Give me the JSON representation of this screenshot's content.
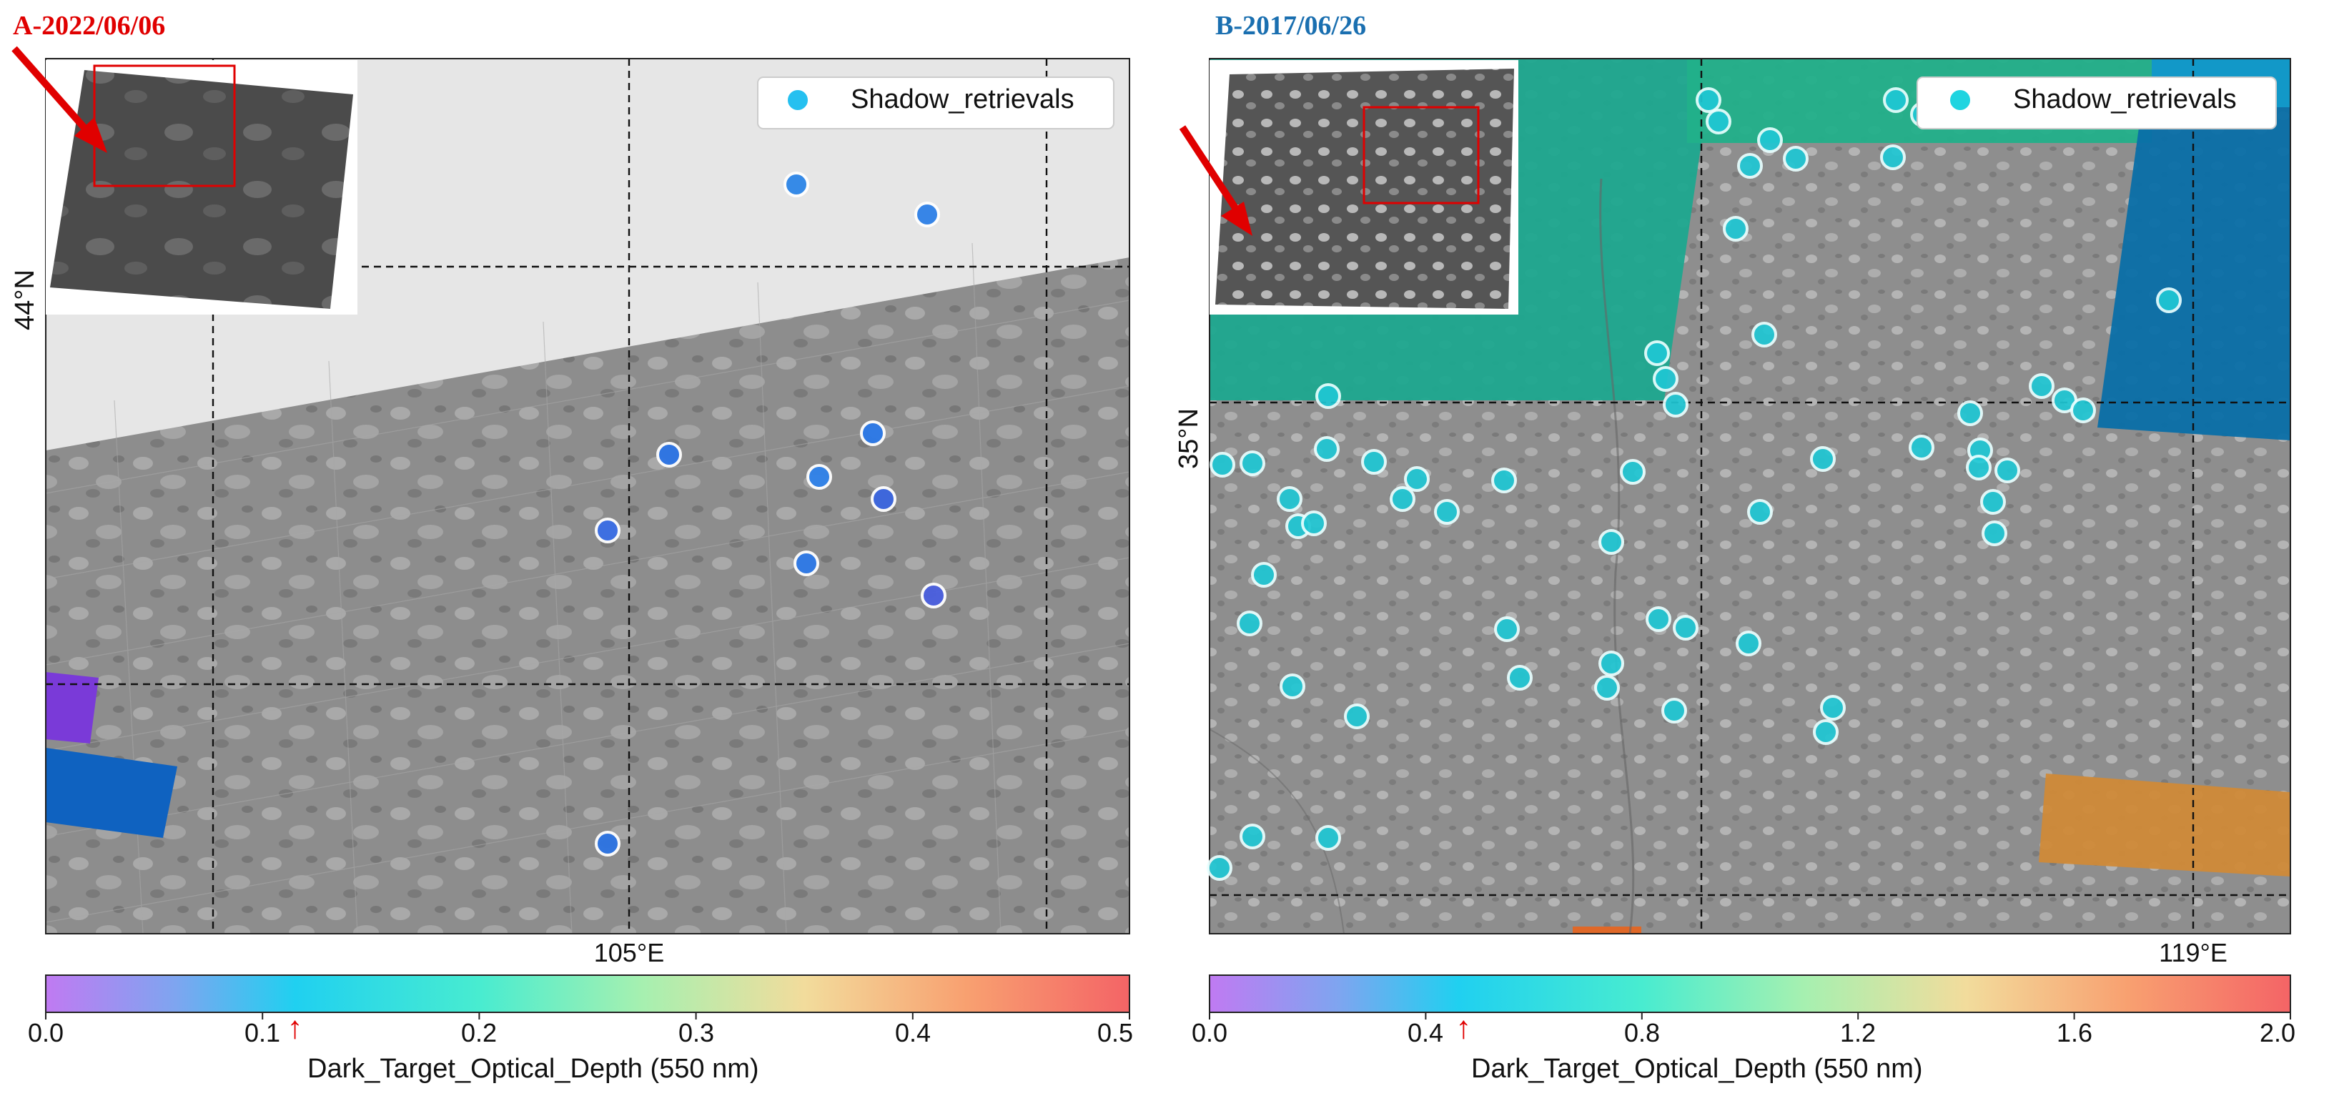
{
  "panels": [
    {
      "title": "A-2022/06/06",
      "title_color": "#e00000",
      "lon_label": "105°E",
      "lat_label": "44°N",
      "legend_label": "Shadow_retrievals",
      "colorbar_label": "Dark_Target_Optical_Depth (550 nm)",
      "colorbar_ticks": [
        "0.0",
        "0.1",
        "0.2",
        "0.3",
        "0.4",
        "0.5"
      ],
      "arrow_glyph": "↑",
      "arrow_value": 0.115
    },
    {
      "title": "B-2017/06/26",
      "title_color": "#1a6fb0",
      "lon_label": "119°E",
      "lat_label": "35°N",
      "legend_label": "Shadow_retrievals",
      "colorbar_label": "Dark_Target_Optical_Depth (550 nm)",
      "colorbar_ticks": [
        "0.0",
        "0.4",
        "0.8",
        "1.2",
        "1.6",
        "2.0"
      ],
      "arrow_glyph": "↑",
      "arrow_value": 0.47
    }
  ],
  "chart_data": [
    {
      "type": "scatter",
      "title": "A-2022/06/06",
      "series": [
        {
          "name": "Shadow_retrievals"
        }
      ],
      "colorbar": {
        "label": "Dark_Target_Optical_Depth (550 nm)",
        "range": [
          0.0,
          0.5
        ],
        "ticks": [
          0.0,
          0.1,
          0.2,
          0.3,
          0.4,
          0.5
        ],
        "colormap": "rainbow",
        "alpha": 0.6
      },
      "gridlines": {
        "lon": [
          "105°E"
        ],
        "lat": [
          "44°N"
        ]
      },
      "marked_value": 0.115,
      "legend_position": "top-right",
      "inset": "satellite scene overview with red box and red arrow"
    },
    {
      "type": "scatter",
      "title": "B-2017/06/26",
      "series": [
        {
          "name": "Shadow_retrievals"
        }
      ],
      "colorbar": {
        "label": "Dark_Target_Optical_Depth (550 nm)",
        "range": [
          0.0,
          2.0
        ],
        "ticks": [
          0.0,
          0.4,
          0.8,
          1.2,
          1.6,
          2.0
        ],
        "colormap": "rainbow",
        "alpha": 0.6
      },
      "gridlines": {
        "lon": [
          "119°E"
        ],
        "lat": [
          "35°N"
        ]
      },
      "marked_value": 0.47,
      "legend_position": "top-right",
      "inset": "satellite scene overview with red box and red arrow"
    }
  ]
}
